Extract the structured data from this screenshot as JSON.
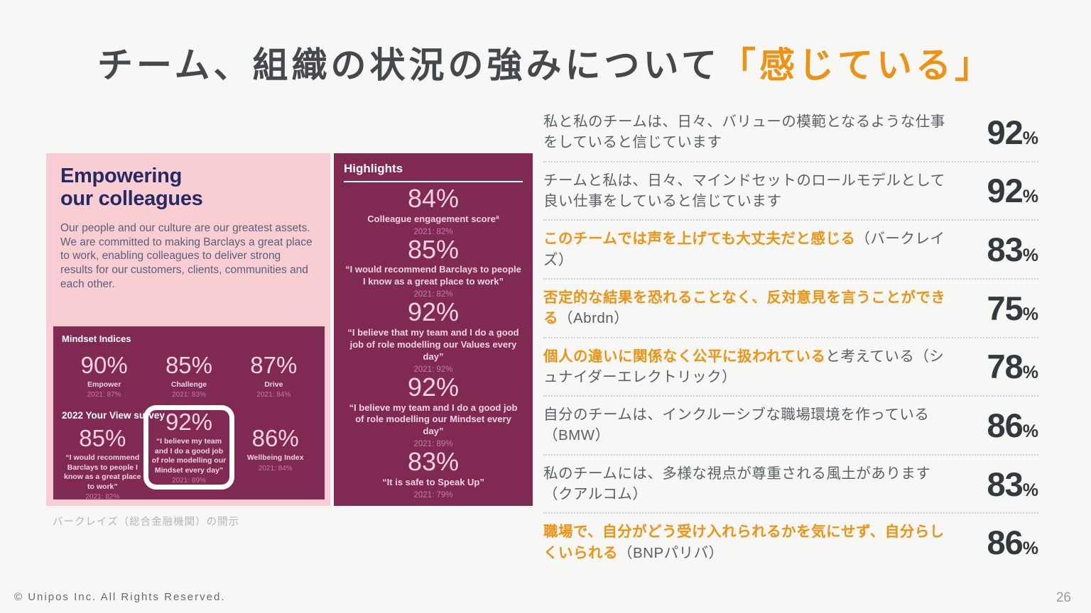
{
  "slide": {
    "title": {
      "main": "チーム、組織の状況の強みについて",
      "highlight": "「感じている」"
    },
    "footer": {
      "copyright": "© Unipos Inc. All Rights Reserved.",
      "page_number": "26"
    }
  },
  "colors": {
    "accent_orange": "#ef9211",
    "panel_pink": "#f9ced3",
    "panel_maroon": "#802a53",
    "heading_navy": "#252a63",
    "title_gray": "#45494d"
  },
  "barclays_panel": {
    "heading": "Empowering\nour colleagues",
    "body": "Our people and our culture are our greatest assets. We are committed to making Barclays a great place to work, enabling colleagues to deliver strong results for our customers, clients, communities and each other.",
    "caption": "バークレイズ（総合金融機関）の開示",
    "mindset": {
      "title": "Mindset Indices",
      "survey_label": "2022 Your View survey",
      "top_stats": [
        {
          "value": "90%",
          "label": "Empower",
          "prior": "2021: 87%",
          "highlighted": false
        },
        {
          "value": "85%",
          "label": "Challenge",
          "prior": "2021: 83%",
          "highlighted": false
        },
        {
          "value": "87%",
          "label": "Drive",
          "prior": "2021: 84%",
          "highlighted": false
        }
      ],
      "bottom_stats": [
        {
          "value": "85%",
          "label": "“I would recommend Barclays to people I know as a great place to work”",
          "prior": "2021: 82%",
          "highlighted": false
        },
        {
          "value": "92%",
          "label": "“I believe my team and I do a good job of role modelling our Mindset every day”",
          "prior": "2021: 89%",
          "highlighted": true
        },
        {
          "value": "86%",
          "label": "Wellbeing Index",
          "prior": "2021: 84%",
          "highlighted": false
        }
      ]
    }
  },
  "highlights_panel": {
    "title": "Highlights",
    "stats": [
      {
        "value": "84%",
        "label": "Colleague engagement scoreª",
        "prior": "2021: 82%"
      },
      {
        "value": "85%",
        "label": "“I would recommend Barclays to people I know as a great place to work”",
        "prior": "2021: 82%"
      },
      {
        "value": "92%",
        "label": "“I believe that my team and I do a good job of role modelling our Values every day”",
        "prior": "2021: 92%"
      },
      {
        "value": "92%",
        "label": "“I believe my team and I do a good job of role modelling our Mindset every day”",
        "prior": "2021: 89%"
      },
      {
        "value": "83%",
        "label": "“It is safe to Speak Up”",
        "prior": "2021: 79%"
      }
    ]
  },
  "survey_rows": [
    {
      "segments": [
        {
          "text": "私と私のチームは、日々、バリューの模範となるような仕事をしていると信じています",
          "em": false
        }
      ],
      "percent": "92"
    },
    {
      "segments": [
        {
          "text": "チームと私は、日々、マインドセットのロールモデルとして良い仕事をしていると信じています",
          "em": false
        }
      ],
      "percent": "92"
    },
    {
      "segments": [
        {
          "text": "このチームでは声を上げても大丈夫だと感じる",
          "em": true
        },
        {
          "text": "（バークレイズ）",
          "em": false
        }
      ],
      "percent": "83"
    },
    {
      "segments": [
        {
          "text": "否定的な結果を恐れることなく、反対意見を言うことができる",
          "em": true
        },
        {
          "text": "（Abrdn）",
          "em": false
        }
      ],
      "percent": "75"
    },
    {
      "segments": [
        {
          "text": "個人の違いに関係なく公平に扱われている",
          "em": true
        },
        {
          "text": "と考えている（シュナイダーエレクトリック）",
          "em": false
        }
      ],
      "percent": "78"
    },
    {
      "segments": [
        {
          "text": "自分のチームは、インクルーシブな職場環境を作っている（BMW）",
          "em": false
        }
      ],
      "percent": "86"
    },
    {
      "segments": [
        {
          "text": "私のチームには、多様な視点が尊重される風土があります（クアルコム）",
          "em": false
        }
      ],
      "percent": "83"
    },
    {
      "segments": [
        {
          "text": "職場で、自分がどう受け入れられるかを気にせず、自分らしくいられる",
          "em": true
        },
        {
          "text": "（BNPパリバ）",
          "em": false
        }
      ],
      "percent": "86"
    }
  ]
}
